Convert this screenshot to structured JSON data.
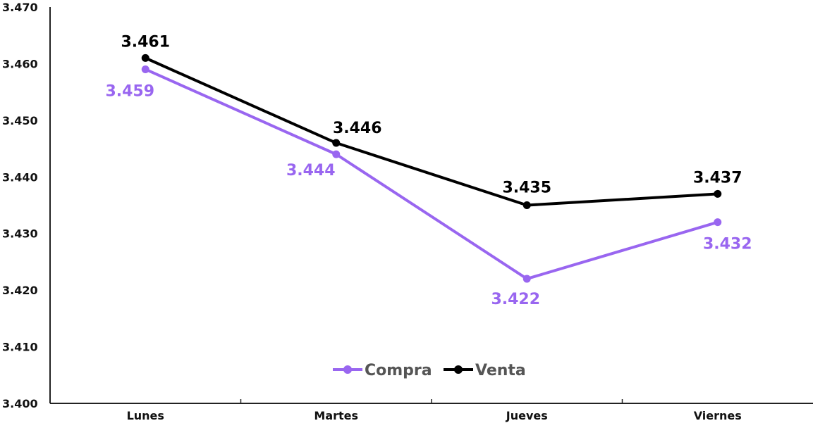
{
  "chart_data": {
    "type": "line",
    "title": "",
    "xlabel": "",
    "ylabel": "",
    "categories": [
      "Lunes",
      "Martes",
      "Jueves",
      "Viernes"
    ],
    "ylim": [
      3.4,
      3.47
    ],
    "yticks": [
      "3.400",
      "3.410",
      "3.420",
      "3.430",
      "3.440",
      "3.450",
      "3.460",
      "3.470"
    ],
    "grid": false,
    "legend_position": "bottom-center",
    "series": [
      {
        "name": "Compra",
        "color": "#9966F0",
        "values": [
          3.459,
          3.444,
          3.422,
          3.432
        ],
        "labels": [
          "3.459",
          "3.444",
          "3.422",
          "3.432"
        ]
      },
      {
        "name": "Venta",
        "color": "#000000",
        "values": [
          3.461,
          3.446,
          3.435,
          3.437
        ],
        "labels": [
          "3.461",
          "3.446",
          "3.435",
          "3.437"
        ]
      }
    ]
  }
}
